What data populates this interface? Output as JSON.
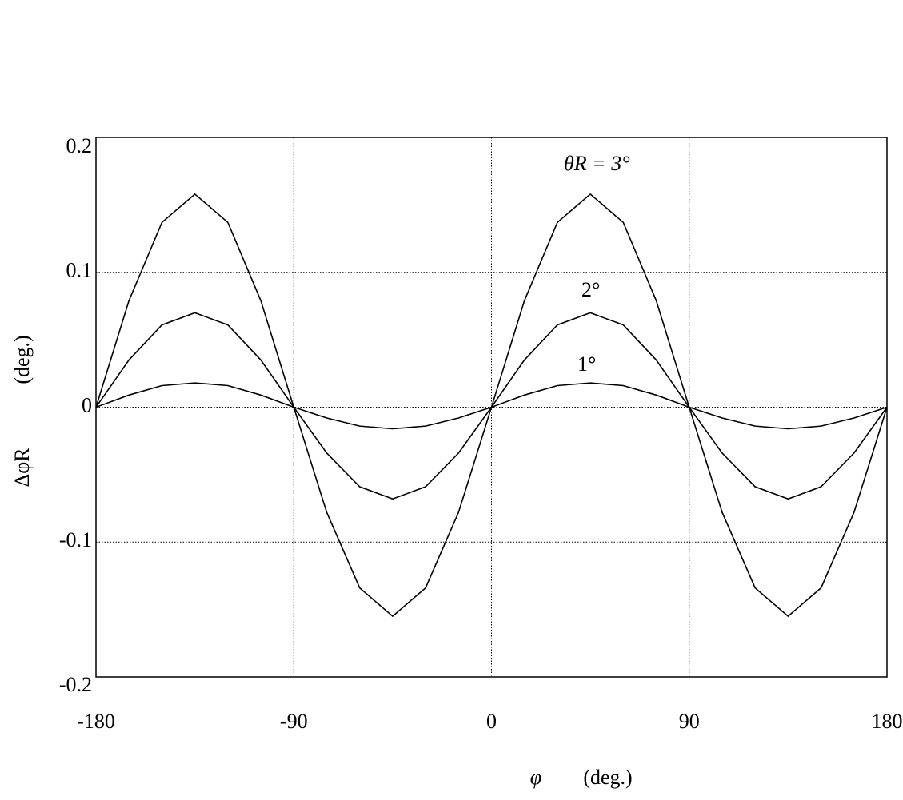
{
  "chart_data": {
    "type": "line",
    "x": [
      -180,
      -165,
      -150,
      -135,
      -120,
      -105,
      -90,
      -75,
      -60,
      -45,
      -30,
      -15,
      0,
      15,
      30,
      45,
      60,
      75,
      90,
      105,
      120,
      135,
      150,
      165,
      180
    ],
    "series": [
      {
        "name": "θR = 3°",
        "color": "#000000",
        "values": [
          0,
          0.079,
          0.137,
          0.158,
          0.137,
          0.079,
          0,
          -0.078,
          -0.134,
          -0.155,
          -0.134,
          -0.078,
          0,
          0.079,
          0.137,
          0.158,
          0.137,
          0.079,
          0,
          -0.078,
          -0.134,
          -0.155,
          -0.134,
          -0.078,
          0
        ]
      },
      {
        "name": "2°",
        "color": "#000000",
        "values": [
          0,
          0.035,
          0.061,
          0.07,
          0.061,
          0.035,
          0,
          -0.034,
          -0.059,
          -0.068,
          -0.059,
          -0.034,
          0,
          0.035,
          0.061,
          0.07,
          0.061,
          0.035,
          0,
          -0.034,
          -0.059,
          -0.068,
          -0.059,
          -0.034,
          0
        ]
      },
      {
        "name": "1°",
        "color": "#000000",
        "values": [
          0,
          0.009,
          0.016,
          0.018,
          0.016,
          0.009,
          0,
          -0.008,
          -0.014,
          -0.016,
          -0.014,
          -0.008,
          0,
          0.009,
          0.016,
          0.018,
          0.016,
          0.009,
          0,
          -0.008,
          -0.014,
          -0.016,
          -0.014,
          -0.008,
          0
        ]
      }
    ],
    "xlabel": "φ",
    "xlabel_unit": "(deg.)",
    "ylabel": "ΔφR",
    "ylabel_unit": "(deg.)",
    "xlim": [
      -180,
      180
    ],
    "xticks": [
      -180,
      -90,
      0,
      90,
      180
    ],
    "ylim": [
      -0.2,
      0.2
    ],
    "yticks": [
      -0.2,
      -0.1,
      0,
      0.1,
      0.2
    ],
    "grid": true
  }
}
